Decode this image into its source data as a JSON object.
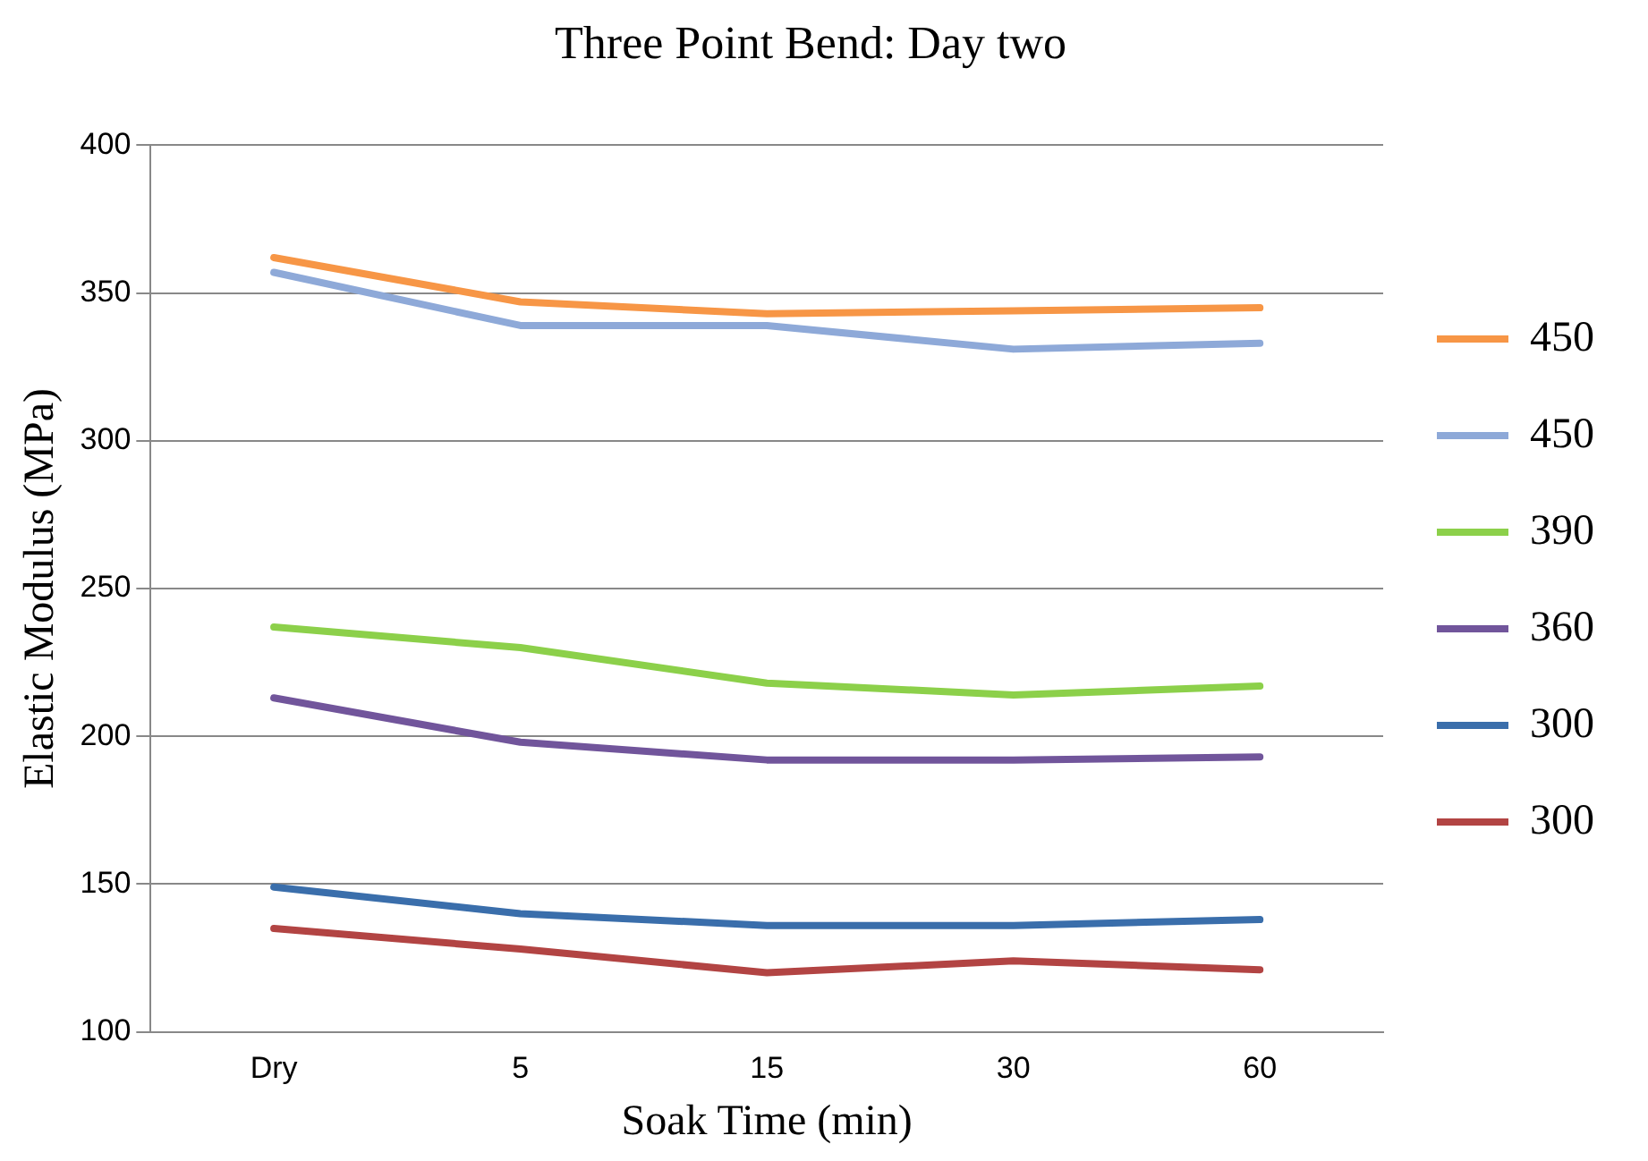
{
  "chart_data": {
    "type": "line",
    "title": "Three Point Bend: Day two",
    "xlabel": "Soak Time (min)",
    "ylabel": "Elastic Modulus (MPa)",
    "categories": [
      "Dry",
      "5",
      "15",
      "30",
      "60"
    ],
    "series": [
      {
        "name": "450",
        "color": "#f79646",
        "values": [
          362,
          347,
          343,
          344,
          345
        ]
      },
      {
        "name": "450",
        "color": "#8ea9d8",
        "values": [
          357,
          339,
          339,
          331,
          333
        ]
      },
      {
        "name": "390",
        "color": "#8cd04a",
        "values": [
          237,
          230,
          218,
          214,
          217
        ]
      },
      {
        "name": "360",
        "color": "#71559b",
        "values": [
          213,
          198,
          192,
          192,
          193
        ]
      },
      {
        "name": "300",
        "color": "#3a6eab",
        "values": [
          149,
          140,
          136,
          136,
          138
        ]
      },
      {
        "name": "300",
        "color": "#b24443",
        "values": [
          135,
          128,
          120,
          124,
          121
        ]
      }
    ],
    "ylim": [
      100,
      400
    ],
    "yticks": [
      100,
      150,
      200,
      250,
      300,
      350,
      400
    ],
    "grid": "y",
    "legend": "right",
    "marker": "none",
    "line_style": "solid"
  }
}
